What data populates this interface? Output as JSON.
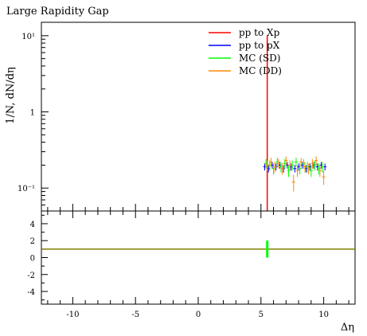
{
  "chart_data": {
    "type": "scatter",
    "title": "Large Rapidity Gap",
    "xlabel": "Δη",
    "ylabel": "1/N, dN/dη",
    "xlim": [
      -12.5,
      12.5
    ],
    "ylim": [
      0.05,
      15
    ],
    "yscale": "log",
    "x_ticks": [
      -10,
      -5,
      0,
      5,
      10
    ],
    "x_tick_labels": [
      "-10",
      "-5",
      "0",
      "5",
      "10"
    ],
    "y_ticks": [
      0.1,
      1,
      10
    ],
    "y_tick_labels": [
      "10⁻¹",
      "1",
      "10¹"
    ],
    "legend_position": "top-right",
    "series": [
      {
        "name": "pp to Xp",
        "color": "#ff0000",
        "style": "line",
        "x": [
          5.5,
          5.5
        ],
        "y": [
          0.05,
          10
        ]
      },
      {
        "name": "pp to pX",
        "color": "#0000ff",
        "style": "errorbar",
        "x": [
          5.3,
          5.6,
          5.9,
          6.2,
          6.5,
          6.8,
          7.1,
          7.4,
          7.7,
          8.0,
          8.3,
          8.6,
          8.9,
          9.2,
          9.5,
          9.8,
          10.1
        ],
        "y": [
          0.19,
          0.18,
          0.2,
          0.19,
          0.2,
          0.18,
          0.2,
          0.19,
          0.18,
          0.19,
          0.2,
          0.18,
          0.19,
          0.2,
          0.19,
          0.2,
          0.19
        ],
        "err": [
          0.02,
          0.02,
          0.02,
          0.02,
          0.02,
          0.02,
          0.02,
          0.02,
          0.02,
          0.02,
          0.02,
          0.02,
          0.02,
          0.02,
          0.02,
          0.02,
          0.02
        ]
      },
      {
        "name": "MC (SD)",
        "color": "#00ff00",
        "style": "errorbar",
        "x": [
          5.4,
          5.7,
          6.0,
          6.3,
          6.6,
          6.9,
          7.2,
          7.5,
          7.8,
          8.1,
          8.4,
          8.7,
          9.0,
          9.3,
          9.6,
          9.9
        ],
        "y": [
          0.21,
          0.2,
          0.18,
          0.22,
          0.19,
          0.21,
          0.17,
          0.2,
          0.22,
          0.18,
          0.21,
          0.19,
          0.17,
          0.2,
          0.18,
          0.19
        ],
        "err": [
          0.03,
          0.03,
          0.03,
          0.03,
          0.03,
          0.03,
          0.03,
          0.03,
          0.03,
          0.03,
          0.03,
          0.03,
          0.03,
          0.03,
          0.03,
          0.03
        ]
      },
      {
        "name": "MC (DD)",
        "color": "#ff8800",
        "style": "errorbar",
        "x": [
          5.5,
          5.8,
          6.1,
          6.4,
          6.7,
          7.0,
          7.3,
          7.6,
          7.9,
          8.2,
          8.5,
          8.8,
          9.1,
          9.4,
          9.7,
          10.0
        ],
        "y": [
          0.2,
          0.22,
          0.19,
          0.21,
          0.18,
          0.23,
          0.2,
          0.12,
          0.17,
          0.22,
          0.19,
          0.18,
          0.21,
          0.23,
          0.17,
          0.14
        ],
        "err": [
          0.03,
          0.03,
          0.03,
          0.03,
          0.03,
          0.03,
          0.03,
          0.03,
          0.03,
          0.03,
          0.03,
          0.03,
          0.03,
          0.03,
          0.03,
          0.03
        ]
      }
    ],
    "ratio_panel": {
      "ylim": [
        -5.5,
        5.5
      ],
      "y_ticks": [
        -4,
        -2,
        0,
        2,
        4
      ],
      "y_tick_labels": [
        "-4",
        "-2",
        "0",
        "2",
        "4"
      ],
      "reference_value": 1,
      "reference_color": "#808000",
      "band": {
        "x": 5.5,
        "y_low": 0,
        "y_high": 2,
        "color": "#00ff00"
      }
    }
  }
}
